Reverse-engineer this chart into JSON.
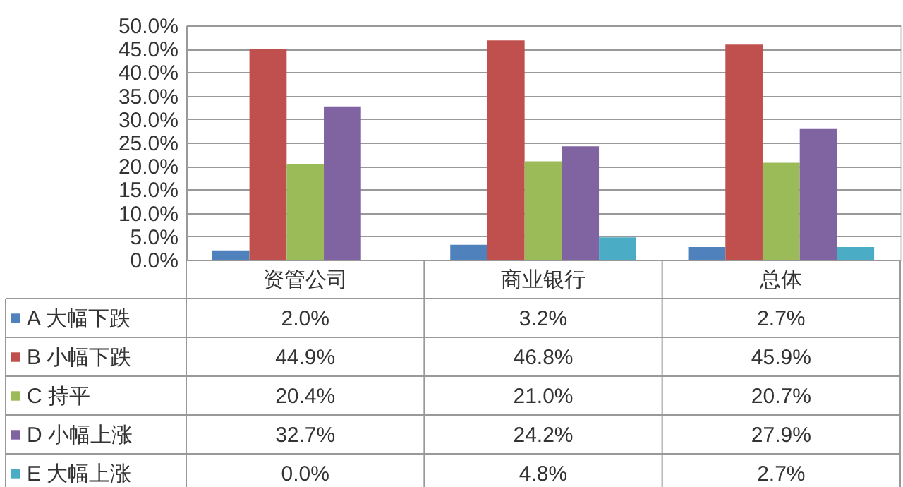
{
  "chart_data": {
    "type": "bar",
    "categories": [
      "资管公司",
      "商业银行",
      "总体"
    ],
    "series": [
      {
        "name": "A 大幅下跌",
        "color": "#4f81bd",
        "values": [
          2.0,
          3.2,
          2.7
        ],
        "value_labels": [
          "2.0%",
          "3.2%",
          "2.7%"
        ]
      },
      {
        "name": "B 小幅下跌",
        "color": "#c0504d",
        "values": [
          44.9,
          46.8,
          45.9
        ],
        "value_labels": [
          "44.9%",
          "46.8%",
          "45.9%"
        ]
      },
      {
        "name": "C 持平",
        "color": "#9bbb59",
        "values": [
          20.4,
          21.0,
          20.7
        ],
        "value_labels": [
          "20.4%",
          "21.0%",
          "20.7%"
        ]
      },
      {
        "name": "D 小幅上涨",
        "color": "#8064a2",
        "values": [
          32.7,
          24.2,
          27.9
        ],
        "value_labels": [
          "32.7%",
          "24.2%",
          "27.9%"
        ]
      },
      {
        "name": "E 大幅上涨",
        "color": "#4bacc6",
        "values": [
          0.0,
          4.8,
          2.7
        ],
        "value_labels": [
          "0.0%",
          "4.8%",
          "2.7%"
        ]
      }
    ],
    "ylim": [
      0,
      50
    ],
    "yticks": [
      {
        "value": 0,
        "label": "0.0%"
      },
      {
        "value": 5,
        "label": "5.0%"
      },
      {
        "value": 10,
        "label": "10.0%"
      },
      {
        "value": 15,
        "label": "15.0%"
      },
      {
        "value": 20,
        "label": "20.0%"
      },
      {
        "value": 25,
        "label": "25.0%"
      },
      {
        "value": 30,
        "label": "30.0%"
      },
      {
        "value": 35,
        "label": "35.0%"
      },
      {
        "value": 40,
        "label": "40.0%"
      },
      {
        "value": 45,
        "label": "45.0%"
      },
      {
        "value": 50,
        "label": "50.0%"
      }
    ],
    "grid": "y",
    "legend": "bottom"
  }
}
